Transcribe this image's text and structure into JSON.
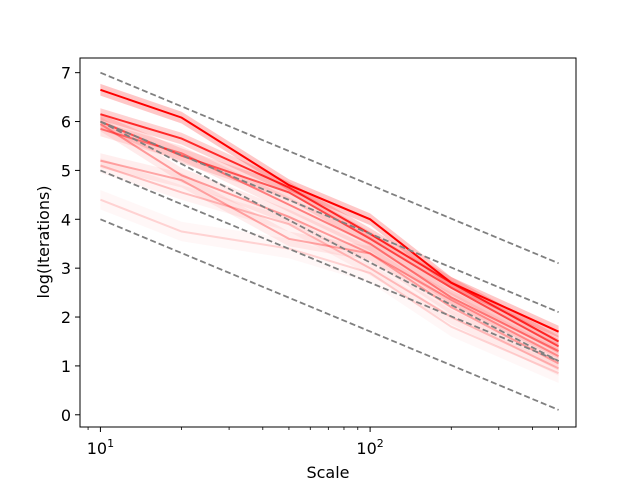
{
  "chart_data": {
    "type": "line",
    "title": "",
    "xlabel": "Scale",
    "ylabel": "log(Iterations)",
    "xscale": "log",
    "xlim": [
      8.4,
      580
    ],
    "ylim": [
      -0.25,
      7.3
    ],
    "x": [
      10,
      20,
      50,
      100,
      200,
      500
    ],
    "x_ticks": [
      {
        "value": 10,
        "base": "10",
        "exp": "1"
      },
      {
        "value": 100,
        "base": "10",
        "exp": "2"
      }
    ],
    "y_ticks": [
      0,
      1,
      2,
      3,
      4,
      5,
      6,
      7
    ],
    "grid": false,
    "legend": "none",
    "reference_lines": [
      {
        "x": [
          10,
          500
        ],
        "y": [
          7,
          3.1
        ],
        "color": "#808080",
        "style": "dashed"
      },
      {
        "x": [
          10,
          500
        ],
        "y": [
          6,
          2.1
        ],
        "color": "#808080",
        "style": "dashed"
      },
      {
        "x": [
          10,
          500
        ],
        "y": [
          6,
          1.1
        ],
        "color": "#808080",
        "style": "dashed"
      },
      {
        "x": [
          10,
          500
        ],
        "y": [
          5,
          1.1
        ],
        "color": "#808080",
        "style": "dashed"
      },
      {
        "x": [
          10,
          500
        ],
        "y": [
          4,
          0.1
        ],
        "color": "#808080",
        "style": "dashed"
      }
    ],
    "series": [
      {
        "values": [
          6.65,
          6.08,
          4.7,
          4.0,
          2.7,
          1.7
        ],
        "band": 0.12,
        "color": "#ff0000",
        "opacity": 1.0
      },
      {
        "values": [
          6.15,
          5.65,
          4.65,
          3.7,
          2.7,
          1.5
        ],
        "band": 0.12,
        "color": "#ff0000",
        "opacity": 0.8
      },
      {
        "values": [
          6.0,
          5.3,
          4.55,
          3.6,
          2.6,
          1.4
        ],
        "band": 0.15,
        "color": "#ff0000",
        "opacity": 0.6
      },
      {
        "values": [
          5.85,
          5.35,
          4.3,
          3.5,
          2.4,
          1.3
        ],
        "band": 0.15,
        "color": "#ff0000",
        "opacity": 0.45
      },
      {
        "values": [
          5.95,
          4.9,
          4.05,
          3.3,
          2.35,
          1.2
        ],
        "band": 0.15,
        "color": "#ff0000",
        "opacity": 0.35
      },
      {
        "values": [
          5.2,
          4.8,
          3.6,
          3.3,
          2.2,
          1.05
        ],
        "band": 0.15,
        "color": "#ff0000",
        "opacity": 0.3
      },
      {
        "values": [
          5.1,
          4.55,
          3.9,
          3.0,
          2.0,
          0.95
        ],
        "band": 0.15,
        "color": "#ff0000",
        "opacity": 0.22
      },
      {
        "values": [
          4.4,
          3.75,
          3.4,
          2.9,
          1.8,
          0.85
        ],
        "band": 0.2,
        "color": "#ff0000",
        "opacity": 0.15
      }
    ]
  }
}
